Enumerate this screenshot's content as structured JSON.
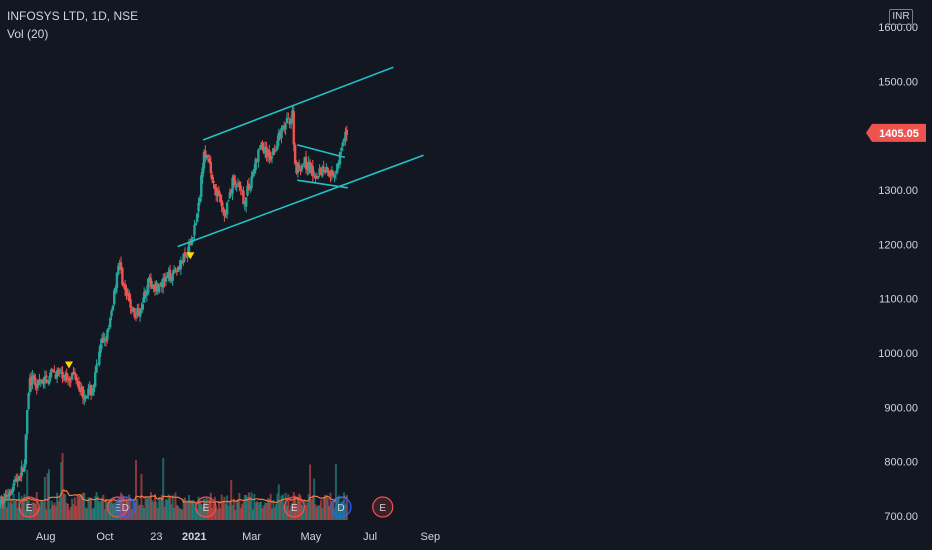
{
  "header": {
    "symbol": "INFOSYS LTD, 1D, NSE",
    "volume_indicator": "Vol (20)",
    "currency": "INR"
  },
  "last_price_label": "1405.05",
  "colors": {
    "background": "#131722",
    "up": "#26a69a",
    "down": "#ef5350",
    "trendline": "#21c2c7",
    "price_tag": "#ef5350",
    "vol_ma": "#f57c3c",
    "earnings": "#ef5350",
    "dividend": "#2962ff",
    "marker": "#ffd600"
  },
  "chart_data": {
    "type": "candlestick",
    "title": "",
    "ylim": [
      690,
      1620
    ],
    "y_ticks": [
      "700.00",
      "800.00",
      "900.00",
      "1000.00",
      "1100.00",
      "1200.00",
      "1300.00",
      "1400.00",
      "1500.00",
      "1600.00"
    ],
    "x_ticks": [
      {
        "label": "Aug",
        "date": "2020-08-01",
        "bold": false
      },
      {
        "label": "Oct",
        "date": "2020-10-01",
        "bold": false
      },
      {
        "label": "23",
        "date": "2020-11-23",
        "bold": false
      },
      {
        "label": "2021",
        "date": "2021-01-01",
        "bold": true
      },
      {
        "label": "Mar",
        "date": "2021-03-01",
        "bold": false
      },
      {
        "label": "May",
        "date": "2021-05-01",
        "bold": false
      },
      {
        "label": "Jul",
        "date": "2021-07-01",
        "bold": false
      },
      {
        "label": "Sep",
        "date": "2021-09-01",
        "bold": false
      }
    ],
    "last_price": 1405.05,
    "price_path": [
      [
        "2020-06-15",
        720
      ],
      [
        "2020-07-10",
        790
      ],
      [
        "2020-07-15",
        950
      ],
      [
        "2020-07-25",
        940
      ],
      [
        "2020-08-10",
        965
      ],
      [
        "2020-08-20",
        955
      ],
      [
        "2020-09-01",
        960
      ],
      [
        "2020-09-08",
        925
      ],
      [
        "2020-09-18",
        930
      ],
      [
        "2020-09-28",
        1020
      ],
      [
        "2020-10-05",
        1040
      ],
      [
        "2020-10-12",
        1130
      ],
      [
        "2020-10-15",
        1170
      ],
      [
        "2020-10-22",
        1110
      ],
      [
        "2020-11-02",
        1065
      ],
      [
        "2020-11-15",
        1130
      ],
      [
        "2020-11-27",
        1120
      ],
      [
        "2020-12-10",
        1150
      ],
      [
        "2020-12-25",
        1180
      ],
      [
        "2021-01-05",
        1260
      ],
      [
        "2021-01-11",
        1380
      ],
      [
        "2021-01-20",
        1320
      ],
      [
        "2021-02-01",
        1250
      ],
      [
        "2021-02-10",
        1320
      ],
      [
        "2021-02-22",
        1280
      ],
      [
        "2021-03-10",
        1380
      ],
      [
        "2021-03-20",
        1360
      ],
      [
        "2021-03-30",
        1400
      ],
      [
        "2021-04-12",
        1440
      ],
      [
        "2021-04-15",
        1340
      ],
      [
        "2021-04-25",
        1350
      ],
      [
        "2021-05-05",
        1330
      ],
      [
        "2021-05-15",
        1340
      ],
      [
        "2021-05-25",
        1330
      ],
      [
        "2021-06-01",
        1370
      ],
      [
        "2021-06-07",
        1405
      ]
    ],
    "trendlines": [
      {
        "name": "channel-upper",
        "points": [
          [
            "2021-01-10",
            1392
          ],
          [
            "2021-07-25",
            1526
          ]
        ]
      },
      {
        "name": "channel-lower",
        "points": [
          [
            "2020-12-15",
            1196
          ],
          [
            "2021-08-25",
            1364
          ]
        ]
      },
      {
        "name": "flag-top",
        "points": [
          [
            "2021-04-17",
            1383
          ],
          [
            "2021-06-05",
            1360
          ]
        ]
      },
      {
        "name": "flag-bottom",
        "points": [
          [
            "2021-04-17",
            1318
          ],
          [
            "2021-06-08",
            1304
          ]
        ]
      }
    ],
    "markers": [
      {
        "date": "2020-08-25",
        "price": 977
      },
      {
        "date": "2020-12-28",
        "price": 1178
      }
    ],
    "events": [
      {
        "type": "E",
        "date": "2020-07-15"
      },
      {
        "type": "E",
        "date": "2020-10-14"
      },
      {
        "type": "D",
        "date": "2020-10-22"
      },
      {
        "type": "E",
        "date": "2021-01-13"
      },
      {
        "type": "E",
        "date": "2021-04-14"
      },
      {
        "type": "D",
        "date": "2021-06-01"
      },
      {
        "type": "E",
        "date": "2021-07-14"
      }
    ]
  }
}
